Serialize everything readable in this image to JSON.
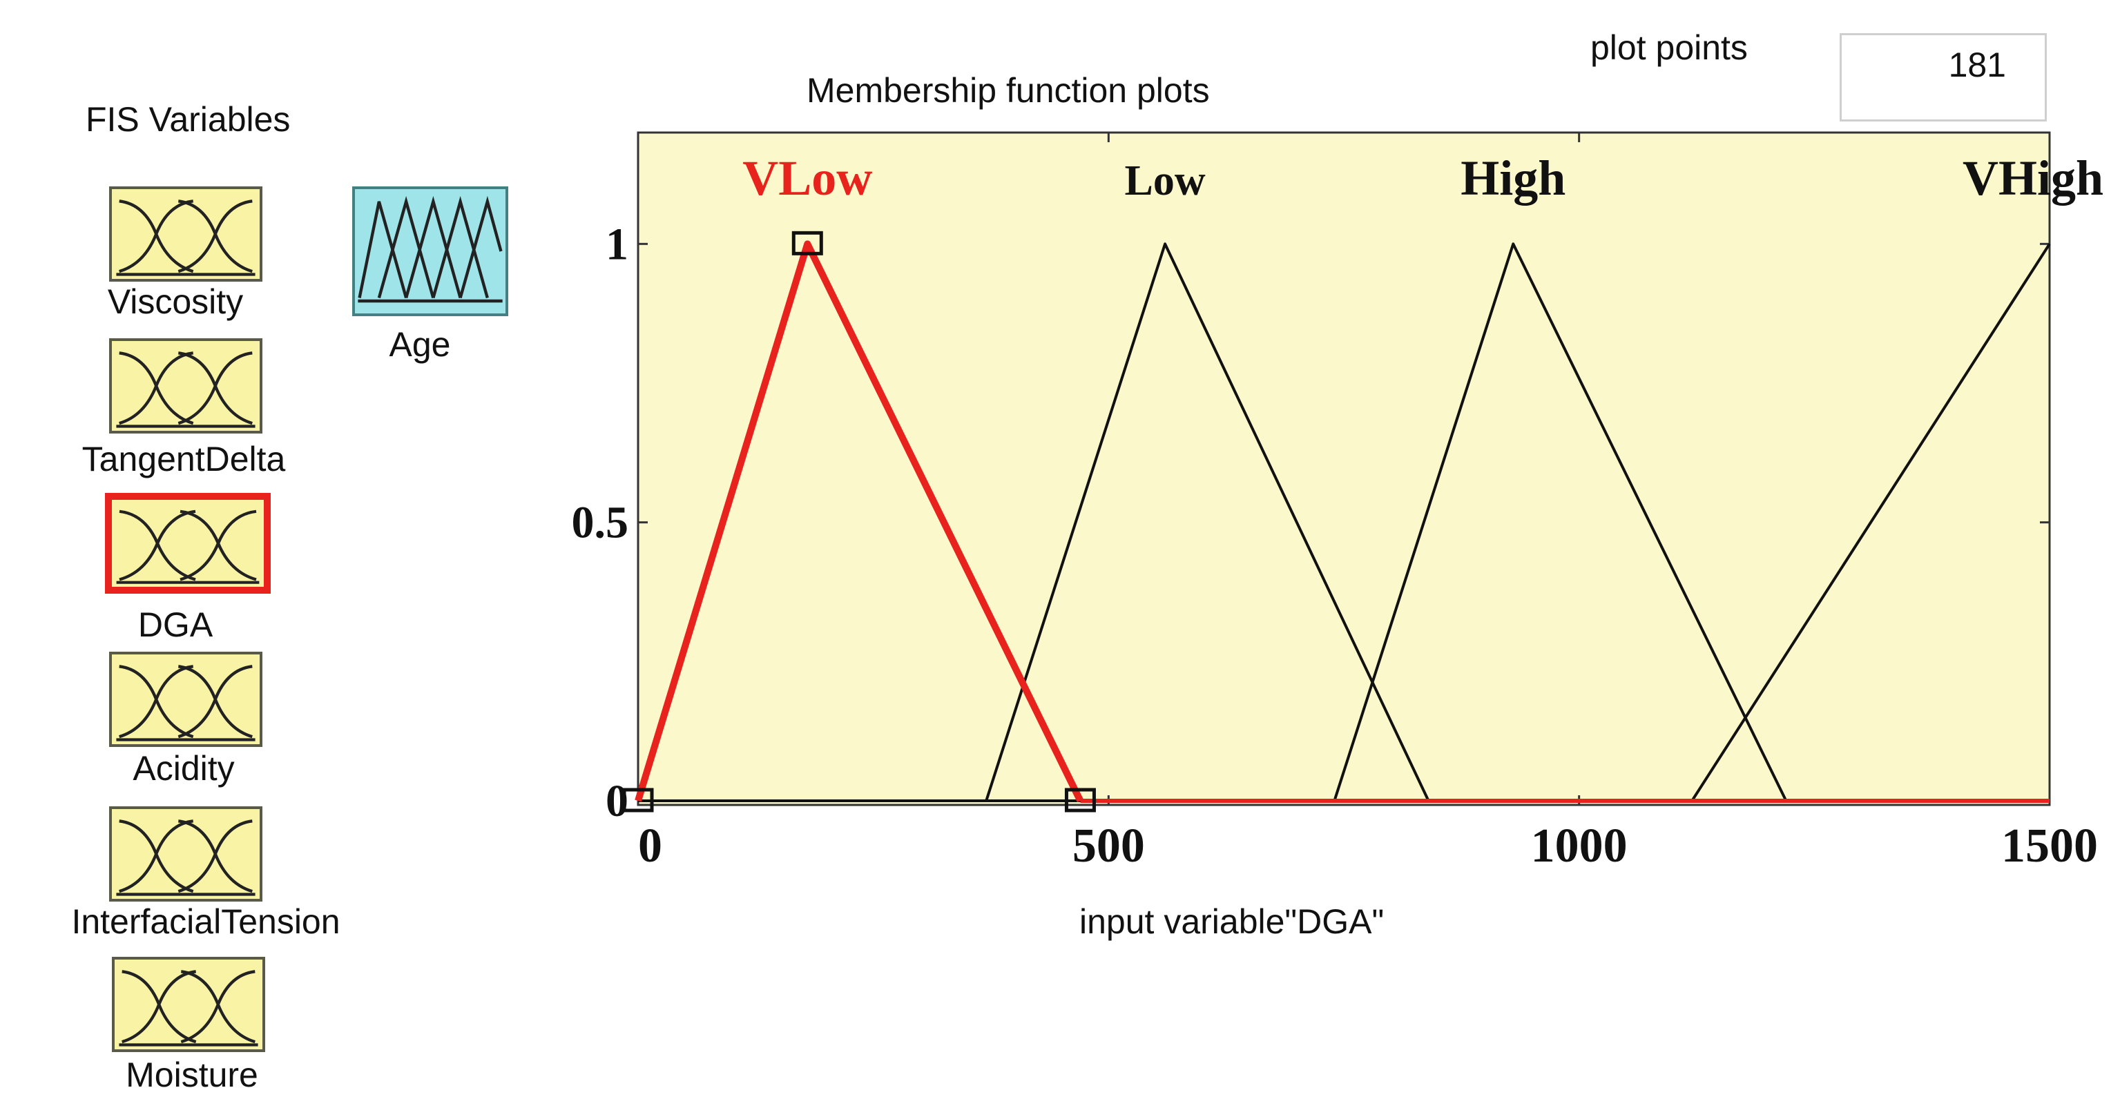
{
  "fis_panel": {
    "title": "FIS Variables",
    "inputs": [
      {
        "name": "Viscosity",
        "selected": false
      },
      {
        "name": "TangentDelta",
        "selected": false
      },
      {
        "name": "DGA",
        "selected": true
      },
      {
        "name": "Acidity",
        "selected": false
      },
      {
        "name": "InterfacialTension",
        "selected": false
      },
      {
        "name": "Moisture",
        "selected": false
      }
    ],
    "output": {
      "name": "Age"
    }
  },
  "plot_panel": {
    "title": "Membership function plots",
    "plot_points_label": "plot points",
    "plot_points_value": "181",
    "xlabel": "input variable\"DGA\""
  },
  "chart_data": {
    "type": "line",
    "xlim": [
      0,
      1500
    ],
    "ylim": [
      0,
      1.2
    ],
    "xticks": [
      "0",
      "500",
      "1000",
      "1500"
    ],
    "yticks": [
      "0",
      "0.5",
      "1"
    ],
    "series": [
      {
        "name": "VLow",
        "x": [
          0,
          180,
          470
        ],
        "y": [
          0,
          1,
          0
        ],
        "color": "#e8221c",
        "selected": true
      },
      {
        "name": "Low",
        "x": [
          370,
          560,
          840
        ],
        "y": [
          0,
          1,
          0
        ],
        "color": "#111111"
      },
      {
        "name": "High",
        "x": [
          740,
          930,
          1220
        ],
        "y": [
          0,
          1,
          0
        ],
        "color": "#111111"
      },
      {
        "name": "VHigh",
        "x": [
          1120,
          1500
        ],
        "y": [
          0,
          1
        ],
        "color": "#111111"
      }
    ]
  },
  "colors": {
    "input_icon_fill": "#f8f3a5",
    "output_icon_fill": "#9fe4e8",
    "plot_background": "#fbf8cc",
    "selected": "#e8221c"
  }
}
